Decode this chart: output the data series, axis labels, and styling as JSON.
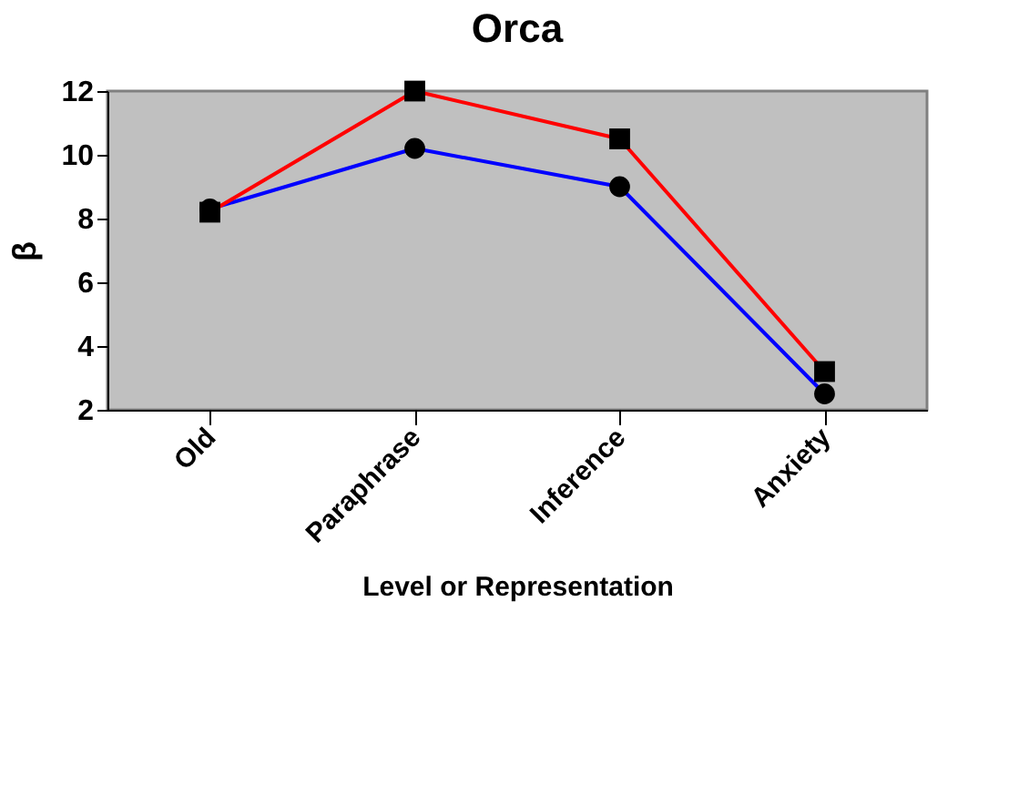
{
  "chart_data": {
    "type": "line",
    "title": "Orca",
    "xlabel": "Level or Representation",
    "ylabel": "β",
    "categories": [
      "Old",
      "Paraphrase",
      "Inference",
      "Anxiety"
    ],
    "series": [
      {
        "color": "#0000ff",
        "marker": "circle",
        "values": [
          8.3,
          10.2,
          9.0,
          2.5
        ]
      },
      {
        "color": "#ff0000",
        "marker": "square",
        "values": [
          8.2,
          12.0,
          10.5,
          3.2
        ]
      }
    ],
    "ylim": [
      2,
      12
    ],
    "yticks": [
      2,
      4,
      6,
      8,
      10,
      12
    ],
    "grid": false,
    "legend": false
  }
}
